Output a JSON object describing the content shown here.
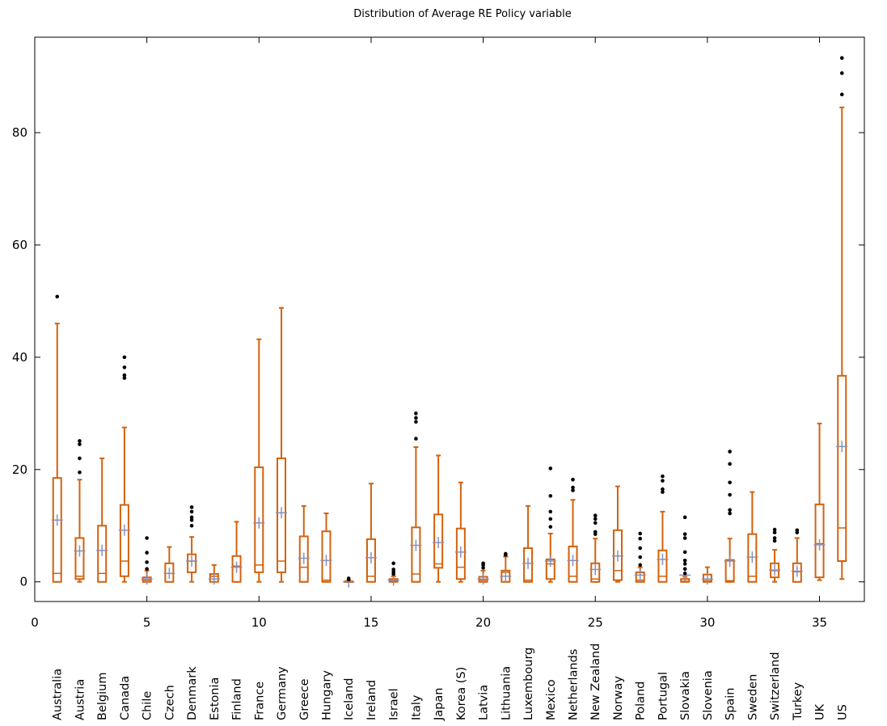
{
  "chart_data": {
    "type": "boxplot",
    "title": "Distribution of Average RE Policy variable",
    "xlim": [
      0,
      37
    ],
    "ylim": [
      -3.5,
      97
    ],
    "x_ticks": [
      0,
      5,
      10,
      15,
      20,
      25,
      30,
      35
    ],
    "y_ticks": [
      0,
      20,
      40,
      60,
      80
    ],
    "grid": false,
    "colors": {
      "box": "#d2620e",
      "mean": "#8b8fb8",
      "outlier": "#000000"
    },
    "categories": [
      "Australia",
      "Austria",
      "Belgium",
      "Canada",
      "Chile",
      "Czech",
      "Denmark",
      "Estonia",
      "Finland",
      "France",
      "Germany",
      "Greece",
      "Hungary",
      "Iceland",
      "Ireland",
      "Israel",
      "Italy",
      "Japan",
      "Korea (S)",
      "Latvia",
      "Lithuania",
      "Luxembourg",
      "Mexico",
      "Netherlands",
      "New Zealand",
      "Norway",
      "Poland",
      "Portugal",
      "Slovakia",
      "Slovenia",
      "Spain",
      "Sweden",
      "Switzerland",
      "Turkey",
      "UK",
      "US"
    ],
    "boxes": [
      {
        "x": 1,
        "min": 0,
        "q1": 0,
        "median": 1.5,
        "q3": 18.5,
        "max": 46,
        "mean": 11,
        "outliers": [
          50.8
        ]
      },
      {
        "x": 2,
        "min": 0,
        "q1": 0.5,
        "median": 1,
        "q3": 7.8,
        "max": 18.2,
        "mean": 5.5,
        "outliers": [
          19.5,
          22,
          24.5,
          25.1
        ]
      },
      {
        "x": 3,
        "min": 0,
        "q1": 0,
        "median": 1.5,
        "q3": 10,
        "max": 22,
        "mean": 5.6,
        "outliers": []
      },
      {
        "x": 4,
        "min": 0,
        "q1": 1,
        "median": 3.7,
        "q3": 13.7,
        "max": 27.5,
        "mean": 9.2,
        "outliers": [
          36.3,
          36.8,
          38.2,
          40
        ]
      },
      {
        "x": 5,
        "min": 0,
        "q1": 0,
        "median": 0.3,
        "q3": 0.8,
        "max": 2,
        "mean": 0.5,
        "outliers": [
          2.3,
          3.5,
          5.2,
          7.8
        ]
      },
      {
        "x": 6,
        "min": 0,
        "q1": 0,
        "median": 1.5,
        "q3": 3.3,
        "max": 6.2,
        "mean": 1.5,
        "outliers": []
      },
      {
        "x": 7,
        "min": 0,
        "q1": 1.7,
        "median": 3.7,
        "q3": 4.9,
        "max": 8,
        "mean": 3.7,
        "outliers": [
          10,
          11,
          11.5,
          12.5,
          13.3
        ]
      },
      {
        "x": 8,
        "min": 0,
        "q1": 0,
        "median": 1,
        "q3": 1.4,
        "max": 3,
        "mean": 0.5,
        "outliers": []
      },
      {
        "x": 9,
        "min": 0,
        "q1": 0,
        "median": 2.8,
        "q3": 4.6,
        "max": 10.7,
        "mean": 2.6,
        "outliers": []
      },
      {
        "x": 10,
        "min": 0,
        "q1": 1.7,
        "median": 3,
        "q3": 20.4,
        "max": 43.2,
        "mean": 10.5,
        "outliers": []
      },
      {
        "x": 11,
        "min": 0,
        "q1": 1.7,
        "median": 3.7,
        "q3": 22,
        "max": 48.8,
        "mean": 12.3,
        "outliers": []
      },
      {
        "x": 12,
        "min": 0,
        "q1": 0,
        "median": 2.6,
        "q3": 8.1,
        "max": 13.5,
        "mean": 4.2,
        "outliers": []
      },
      {
        "x": 13,
        "min": 0,
        "q1": 0,
        "median": 0.3,
        "q3": 9,
        "max": 12.2,
        "mean": 3.8,
        "outliers": []
      },
      {
        "x": 14,
        "min": 0,
        "q1": 0,
        "median": 0,
        "q3": 0.1,
        "max": 0.2,
        "mean": 0,
        "outliers": [
          0.4,
          0.6
        ]
      },
      {
        "x": 15,
        "min": 0,
        "q1": 0,
        "median": 1,
        "q3": 7.6,
        "max": 17.5,
        "mean": 4.3,
        "outliers": []
      },
      {
        "x": 16,
        "min": 0,
        "q1": 0,
        "median": 0.2,
        "q3": 0.5,
        "max": 1,
        "mean": 0.3,
        "outliers": [
          1.4,
          1.8,
          2.2,
          3.3
        ]
      },
      {
        "x": 17,
        "min": 0,
        "q1": 0,
        "median": 1.4,
        "q3": 9.7,
        "max": 24,
        "mean": 6.5,
        "outliers": [
          25.5,
          28.5,
          29.2,
          30
        ]
      },
      {
        "x": 18,
        "min": 0,
        "q1": 2.5,
        "median": 3.2,
        "q3": 12,
        "max": 22.5,
        "mean": 7,
        "outliers": []
      },
      {
        "x": 19,
        "min": 0,
        "q1": 0.5,
        "median": 2.6,
        "q3": 9.5,
        "max": 17.7,
        "mean": 5.3,
        "outliers": []
      },
      {
        "x": 20,
        "min": 0,
        "q1": 0,
        "median": 0.3,
        "q3": 0.9,
        "max": 2,
        "mean": 0.5,
        "outliers": [
          2.5,
          3,
          3.3
        ]
      },
      {
        "x": 21,
        "min": 0,
        "q1": 0,
        "median": 1.7,
        "q3": 2,
        "max": 4.5,
        "mean": 1,
        "outliers": [
          4.8,
          5
        ]
      },
      {
        "x": 22,
        "min": 0,
        "q1": 0,
        "median": 0.3,
        "q3": 6,
        "max": 13.5,
        "mean": 3.3,
        "outliers": []
      },
      {
        "x": 23,
        "min": 0,
        "q1": 0.5,
        "median": 3.2,
        "q3": 4,
        "max": 8.6,
        "mean": 3.7,
        "outliers": [
          9.8,
          11.2,
          12.5,
          15.3,
          20.2
        ]
      },
      {
        "x": 24,
        "min": 0,
        "q1": 0,
        "median": 1,
        "q3": 6.3,
        "max": 14.6,
        "mean": 3.8,
        "outliers": [
          16.3,
          16.8,
          18.2
        ]
      },
      {
        "x": 25,
        "min": 0,
        "q1": 0,
        "median": 0.5,
        "q3": 3.3,
        "max": 7.7,
        "mean": 2.2,
        "outliers": [
          8.5,
          8.9,
          10.5,
          11.2,
          11.8
        ]
      },
      {
        "x": 26,
        "min": 0,
        "q1": 0.3,
        "median": 2,
        "q3": 9.2,
        "max": 17,
        "mean": 4.6,
        "outliers": []
      },
      {
        "x": 27,
        "min": 0,
        "q1": 0,
        "median": 0.3,
        "q3": 1.7,
        "max": 2.6,
        "mean": 1.2,
        "outliers": [
          3,
          4.4,
          6,
          7.7,
          8.6
        ]
      },
      {
        "x": 28,
        "min": 0,
        "q1": 0,
        "median": 1,
        "q3": 5.6,
        "max": 12.5,
        "mean": 4,
        "outliers": [
          16,
          16.5,
          18,
          18.8
        ]
      },
      {
        "x": 29,
        "min": 0,
        "q1": 0,
        "median": 0.1,
        "q3": 0.5,
        "max": 0.9,
        "mean": 1.2,
        "outliers": [
          1.5,
          2.3,
          3.2,
          3.8,
          5.3,
          7.8,
          8.5,
          11.5
        ]
      },
      {
        "x": 30,
        "min": 0,
        "q1": 0,
        "median": 0.2,
        "q3": 1.3,
        "max": 2.6,
        "mean": 0.5,
        "outliers": []
      },
      {
        "x": 31,
        "min": 0,
        "q1": 0,
        "median": 0.2,
        "q3": 3.9,
        "max": 7.7,
        "mean": 3.7,
        "outliers": [
          12.2,
          12.8,
          15.5,
          17.7,
          21,
          23.2
        ]
      },
      {
        "x": 32,
        "min": 0,
        "q1": 0,
        "median": 1,
        "q3": 8.5,
        "max": 16,
        "mean": 4.4,
        "outliers": []
      },
      {
        "x": 33,
        "min": 0,
        "q1": 0.8,
        "median": 2,
        "q3": 3.3,
        "max": 5.7,
        "mean": 2.1,
        "outliers": [
          7.3,
          7.8,
          8.8,
          9.3
        ]
      },
      {
        "x": 34,
        "min": 0,
        "q1": 0,
        "median": 1.8,
        "q3": 3.3,
        "max": 7.8,
        "mean": 1.9,
        "outliers": [
          8.8,
          9.2
        ]
      },
      {
        "x": 35,
        "min": 0.3,
        "q1": 0.8,
        "median": 6.8,
        "q3": 13.8,
        "max": 28.2,
        "mean": 6.6,
        "outliers": []
      },
      {
        "x": 36,
        "min": 0.5,
        "q1": 3.7,
        "median": 9.6,
        "q3": 36.7,
        "max": 84.5,
        "mean": 24.1,
        "outliers": [
          86.8,
          90.6,
          93.3
        ]
      }
    ]
  }
}
